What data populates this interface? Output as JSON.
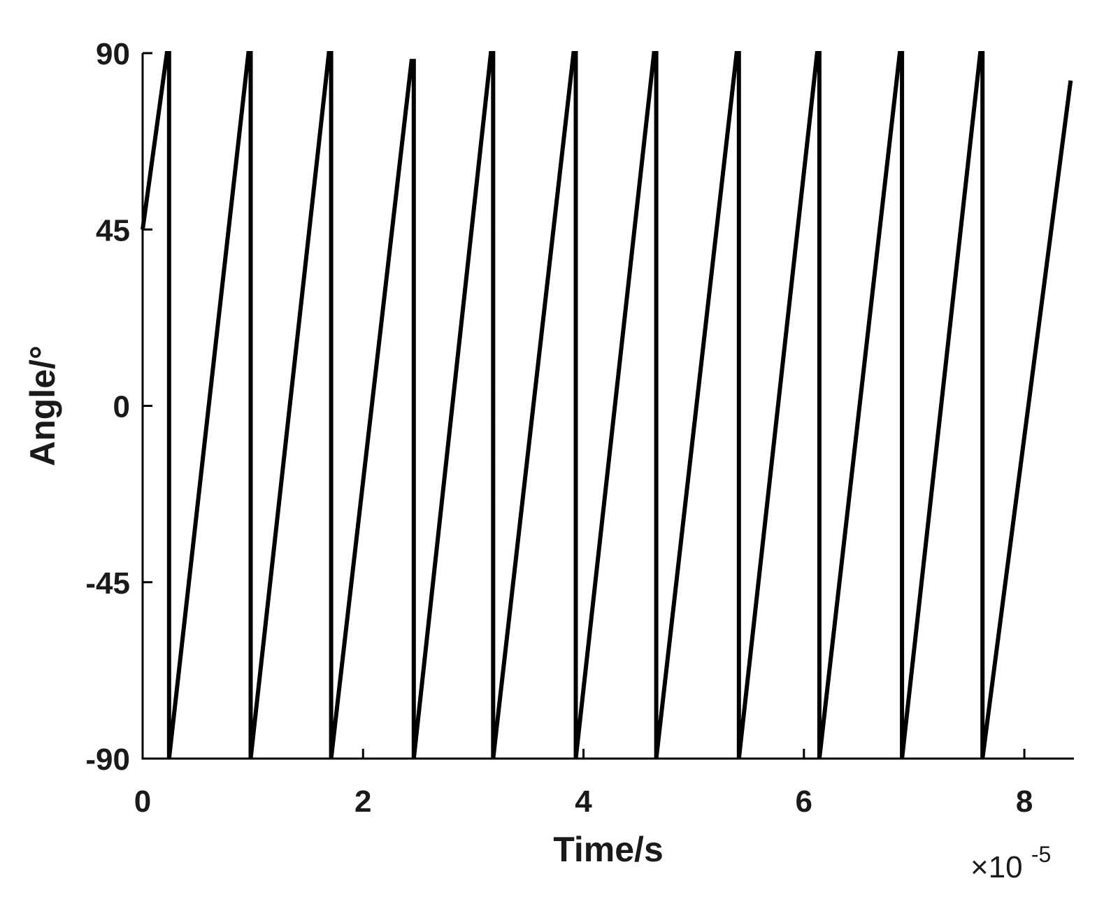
{
  "chart_data": {
    "type": "line",
    "title": "",
    "xlabel": "Time/s",
    "ylabel": "Angle/°",
    "x_multiplier_prefix": "×10",
    "x_multiplier_exponent": "-5",
    "x_multiplier_value": 1e-05,
    "xlim": [
      0,
      8.45
    ],
    "ylim": [
      -90,
      90
    ],
    "x_ticks": [
      0,
      2,
      4,
      6,
      8
    ],
    "x_tick_labels": [
      "0",
      "2",
      "4",
      "6",
      "8"
    ],
    "y_ticks": [
      -90,
      -45,
      0,
      45,
      90
    ],
    "y_tick_labels": [
      "-90",
      "-45",
      "0",
      "45",
      "90"
    ],
    "grid": false,
    "line_color": "#000000",
    "series": [
      {
        "x": [
          0,
          0.22,
          0.24,
          0.24,
          0.96,
          0.98,
          0.98,
          1.69,
          1.71,
          1.71,
          2.44,
          2.46,
          2.46,
          3.16,
          3.18,
          3.18,
          3.91,
          3.93,
          3.93,
          4.64,
          4.66,
          4.66,
          5.39,
          5.41,
          5.41,
          6.12,
          6.14,
          6.14,
          6.87,
          6.89,
          6.89,
          7.6,
          7.62,
          7.62,
          8.42
        ],
        "y": [
          45,
          90,
          90,
          -90,
          90,
          90,
          -90,
          90,
          90,
          -90,
          88,
          88,
          -90,
          90,
          90,
          -90,
          90,
          90,
          -90,
          90,
          90,
          -90,
          90,
          90,
          -90,
          90,
          90,
          -90,
          90,
          90,
          -90,
          90,
          90,
          -90,
          83
        ]
      }
    ]
  }
}
